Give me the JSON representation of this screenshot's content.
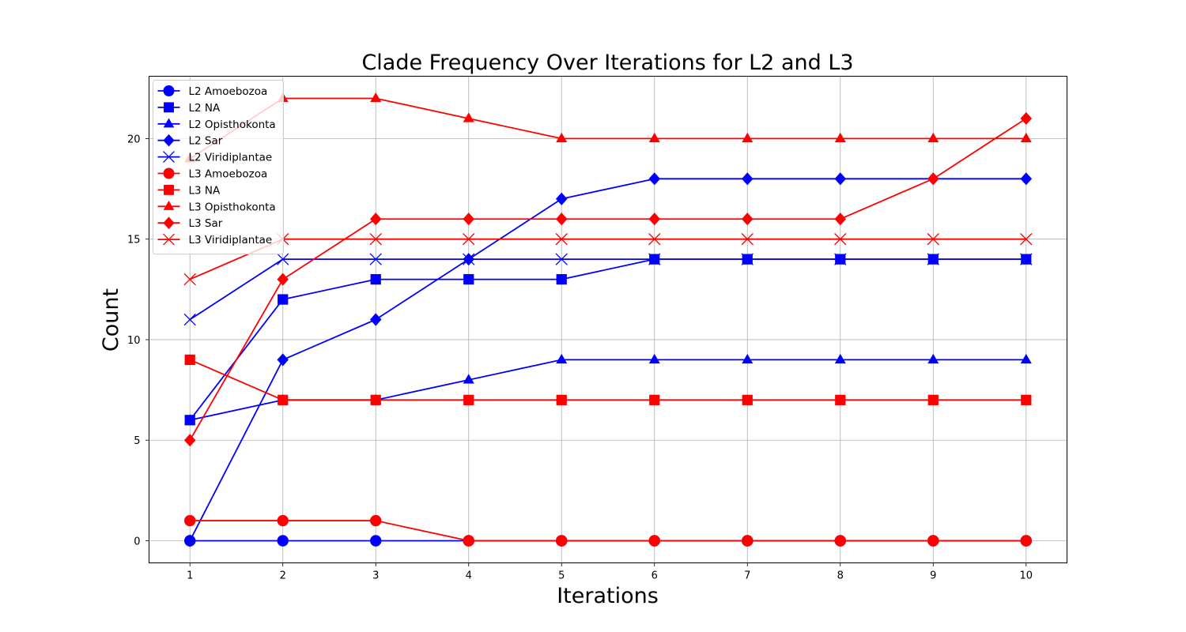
{
  "chart_data": {
    "type": "line",
    "title": "Clade Frequency Over Iterations for L2 and L3",
    "xlabel": "Iterations",
    "ylabel": "Count",
    "x": [
      1,
      2,
      3,
      4,
      5,
      6,
      7,
      8,
      9,
      10
    ],
    "xlim": [
      0.56,
      10.44
    ],
    "ylim": [
      -1.1,
      23.1
    ],
    "xticks": [
      1,
      2,
      3,
      4,
      5,
      6,
      7,
      8,
      9,
      10
    ],
    "yticks": [
      0,
      5,
      10,
      15,
      20
    ],
    "grid": true,
    "legend_position": "top-left",
    "series": [
      {
        "name": "L2 Amoebozoa",
        "color": "#0000ff",
        "marker": "circle",
        "values": [
          0,
          0,
          0,
          0,
          0,
          0,
          0,
          0,
          0,
          0
        ]
      },
      {
        "name": "L2 NA",
        "color": "#0000ff",
        "marker": "square",
        "values": [
          6,
          12,
          13,
          13,
          13,
          14,
          14,
          14,
          14,
          14
        ]
      },
      {
        "name": "L2 Opisthokonta",
        "color": "#0000ff",
        "marker": "triangle",
        "values": [
          6,
          7,
          7,
          8,
          9,
          9,
          9,
          9,
          9,
          9
        ]
      },
      {
        "name": "L2 Sar",
        "color": "#0000ff",
        "marker": "diamond",
        "values": [
          0,
          9,
          11,
          14,
          17,
          18,
          18,
          18,
          18,
          18
        ]
      },
      {
        "name": "L2 Viridiplantae",
        "color": "#0000ff",
        "marker": "x",
        "values": [
          11,
          14,
          14,
          14,
          14,
          14,
          14,
          14,
          14,
          14
        ]
      },
      {
        "name": "L3 Amoebozoa",
        "color": "#ff0000",
        "marker": "circle",
        "values": [
          1,
          1,
          1,
          0,
          0,
          0,
          0,
          0,
          0,
          0
        ]
      },
      {
        "name": "L3 NA",
        "color": "#ff0000",
        "marker": "square",
        "values": [
          9,
          7,
          7,
          7,
          7,
          7,
          7,
          7,
          7,
          7
        ]
      },
      {
        "name": "L3 Opisthokonta",
        "color": "#ff0000",
        "marker": "triangle",
        "values": [
          19,
          22,
          22,
          21,
          20,
          20,
          20,
          20,
          20,
          20
        ]
      },
      {
        "name": "L3 Sar",
        "color": "#ff0000",
        "marker": "diamond",
        "values": [
          5,
          13,
          16,
          16,
          16,
          16,
          16,
          16,
          18,
          21
        ]
      },
      {
        "name": "L3 Viridiplantae",
        "color": "#ff0000",
        "marker": "x",
        "values": [
          13,
          15,
          15,
          15,
          15,
          15,
          15,
          15,
          15,
          15
        ]
      }
    ]
  }
}
